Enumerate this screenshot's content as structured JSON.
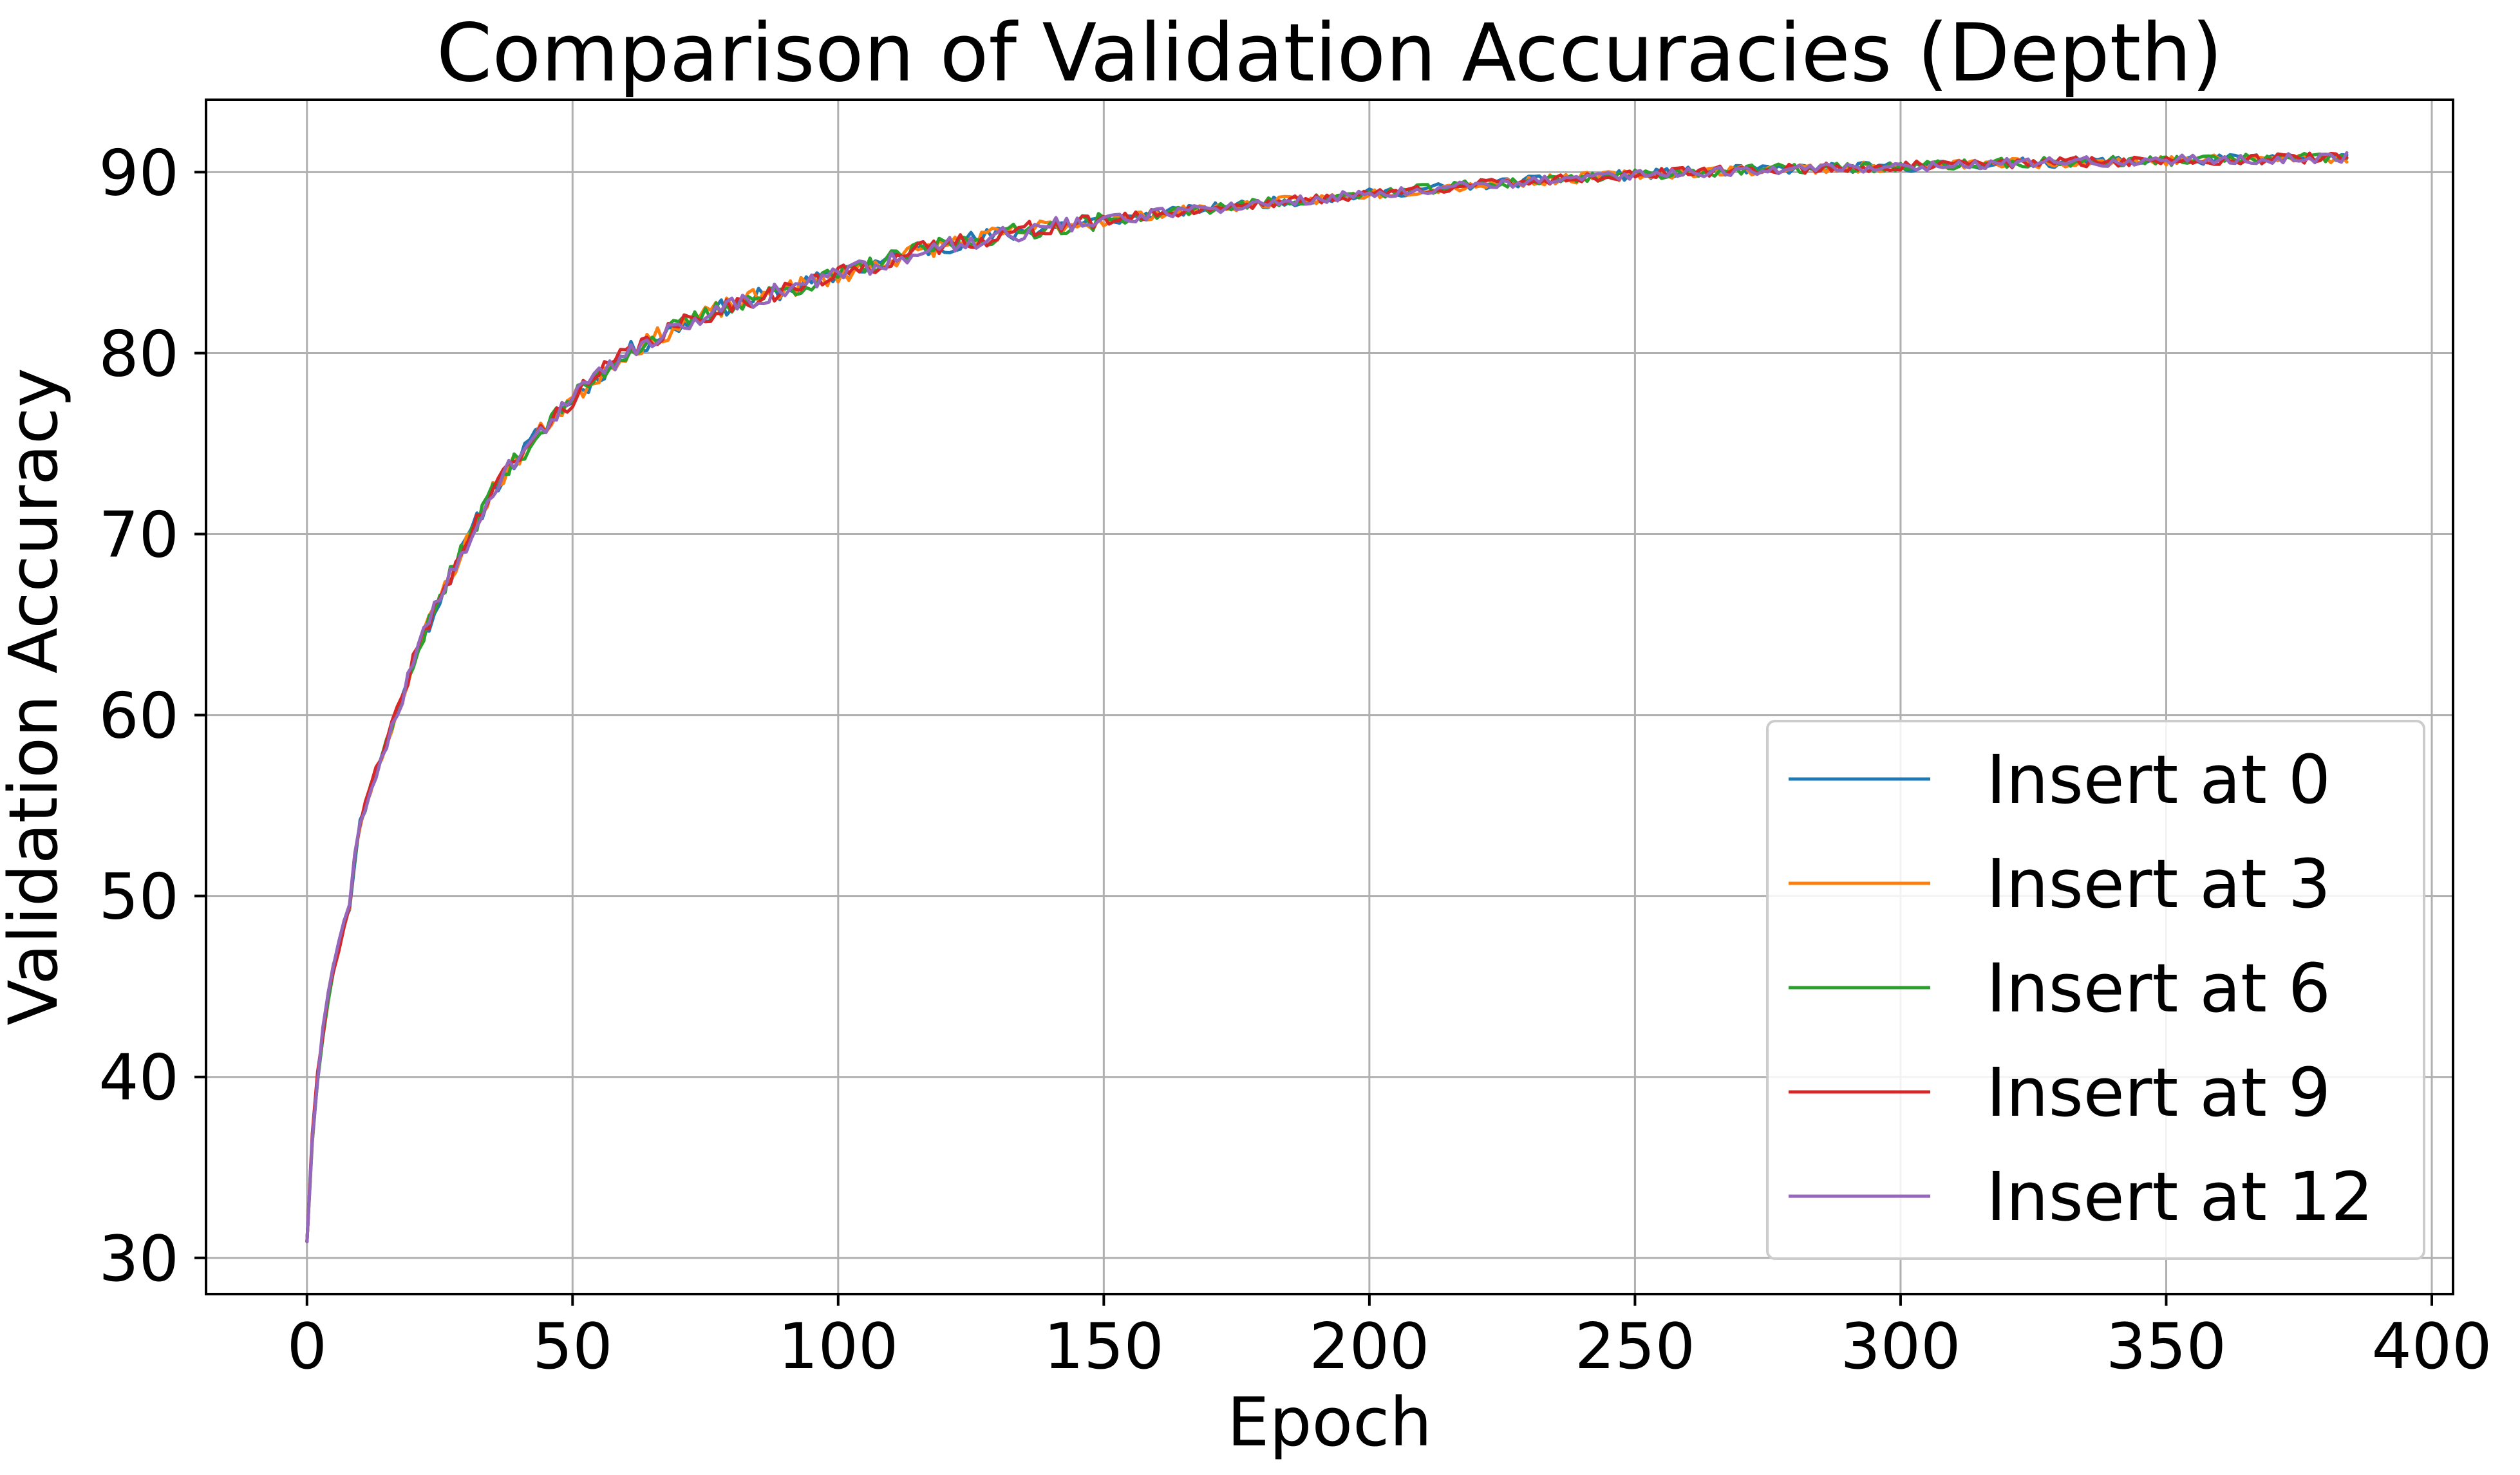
{
  "chart_data": {
    "type": "line",
    "title": "Comparison of Validation Accuracies (Depth)",
    "xlabel": "Epoch",
    "ylabel": "Validation Accuracy",
    "xlim": [
      -19,
      404
    ],
    "ylim": [
      28,
      94
    ],
    "xticks": [
      0,
      50,
      100,
      150,
      200,
      250,
      300,
      350,
      400
    ],
    "yticks": [
      30,
      40,
      50,
      60,
      70,
      80,
      90
    ],
    "grid": true,
    "legend_position": "lower-right",
    "epochs": [
      0,
      384
    ],
    "anchors": {
      "x": [
        0,
        1,
        2,
        3,
        4,
        5,
        6,
        7,
        8,
        9,
        10,
        12,
        15,
        18,
        20,
        25,
        30,
        35,
        40,
        45,
        50,
        55,
        60,
        70,
        80,
        90,
        100,
        110,
        120,
        130,
        140,
        150,
        160,
        170,
        180,
        190,
        200,
        220,
        240,
        260,
        280,
        300,
        320,
        340,
        360,
        384
      ],
      "y": [
        30.9,
        36.5,
        40.0,
        42.5,
        44.5,
        46.0,
        47.3,
        48.5,
        49.5,
        52.0,
        54.0,
        56.0,
        58.5,
        61.0,
        63.0,
        66.5,
        69.5,
        72.5,
        74.3,
        76.0,
        77.5,
        78.8,
        80.0,
        81.5,
        82.7,
        83.5,
        84.3,
        85.2,
        86.0,
        86.5,
        87.0,
        87.3,
        87.7,
        88.0,
        88.3,
        88.5,
        88.8,
        89.3,
        89.7,
        90.0,
        90.2,
        90.3,
        90.5,
        90.6,
        90.7,
        90.8
      ]
    },
    "series": [
      {
        "name": "Insert at 0",
        "color": "#1f77b4",
        "seed": 11
      },
      {
        "name": "Insert at 3",
        "color": "#ff7f0e",
        "seed": 23
      },
      {
        "name": "Insert at 6",
        "color": "#2ca02c",
        "seed": 37
      },
      {
        "name": "Insert at 9",
        "color": "#d62728",
        "seed": 41
      },
      {
        "name": "Insert at 12",
        "color": "#9467bd",
        "seed": 59
      }
    ]
  }
}
